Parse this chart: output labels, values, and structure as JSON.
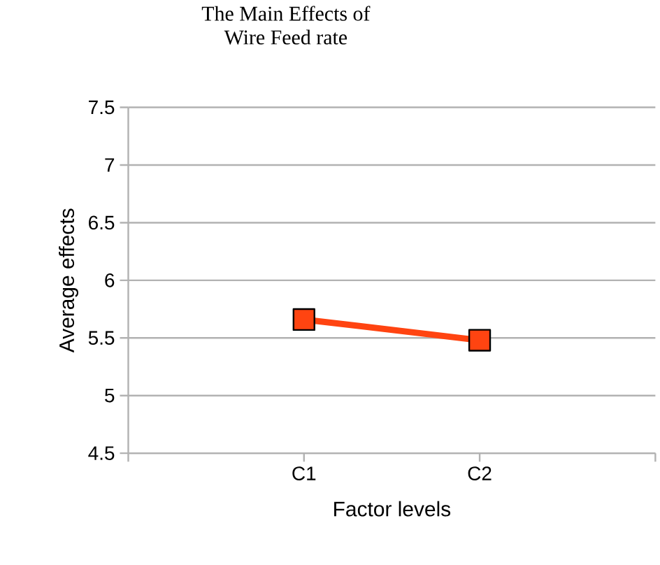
{
  "chart_data": {
    "type": "line",
    "title": "The Main Effects of\nWire Feed rate",
    "xlabel": "Factor levels",
    "ylabel": "Average effects",
    "categories": [
      "C1",
      "C2"
    ],
    "series": [
      {
        "color": "#ff4411",
        "values": [
          5.66,
          5.48
        ]
      }
    ],
    "ylim": [
      4.5,
      7.5
    ],
    "yticks": [
      4.5,
      5,
      5.5,
      6,
      6.5,
      7,
      7.5
    ],
    "grid": "y",
    "marker": "square",
    "line_style": "solid"
  }
}
